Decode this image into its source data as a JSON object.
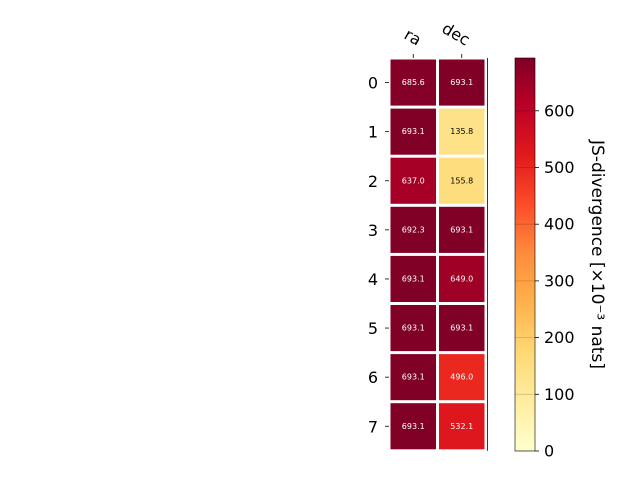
{
  "chart_data": {
    "type": "heatmap",
    "columns": [
      "ra",
      "dec"
    ],
    "rows": [
      "0",
      "1",
      "2",
      "3",
      "4",
      "5",
      "6",
      "7"
    ],
    "values": [
      [
        685.6,
        693.1
      ],
      [
        693.1,
        135.8
      ],
      [
        637.0,
        155.8
      ],
      [
        692.3,
        693.1
      ],
      [
        693.1,
        649.0
      ],
      [
        693.1,
        693.1
      ],
      [
        693.1,
        496.0
      ],
      [
        693.1,
        532.1
      ]
    ],
    "value_labels": [
      [
        "685.6",
        "693.1"
      ],
      [
        "693.1",
        "135.8"
      ],
      [
        "637.0",
        "155.8"
      ],
      [
        "692.3",
        "693.1"
      ],
      [
        "693.1",
        "649.0"
      ],
      [
        "693.1",
        "693.1"
      ],
      [
        "693.1",
        "496.0"
      ],
      [
        "693.1",
        "532.1"
      ]
    ],
    "colorbar": {
      "label": "JS-divergence [×10⁻³ nats]",
      "range": [
        0,
        693.1
      ],
      "ticks": [
        "0",
        "100",
        "200",
        "300",
        "400",
        "500",
        "600"
      ],
      "colormap": "YlOrRd"
    }
  }
}
